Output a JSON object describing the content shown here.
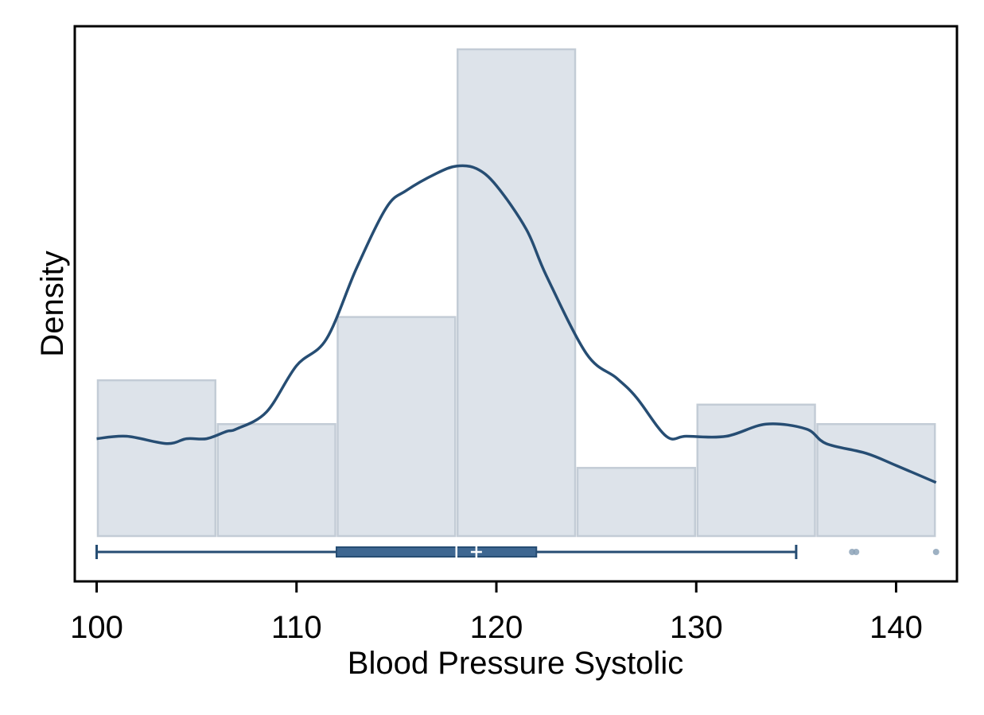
{
  "chart_data": {
    "type": "histogram",
    "title": "",
    "xlabel": "Blood Pressure Systolic",
    "ylabel": "Density",
    "xlim": [
      99,
      143
    ],
    "x_ticks": [
      "100",
      "110",
      "120",
      "130",
      "140"
    ],
    "y_ticks_shown": false,
    "grid": false,
    "histogram": {
      "bin_edges": [
        100,
        106,
        112,
        118,
        124,
        130,
        136,
        142
      ],
      "relative_heights": [
        0.32,
        0.23,
        0.45,
        1.0,
        0.14,
        0.27,
        0.23
      ]
    },
    "density_curve": {
      "x": [
        100,
        101.5,
        103.5,
        104.5,
        105.5,
        106.5,
        107,
        108.5,
        110,
        111.5,
        113,
        114.5,
        115.5,
        117,
        118,
        119,
        120,
        121.5,
        122.5,
        124.5,
        126,
        127,
        128.5,
        129.5,
        131.5,
        133.5,
        135.5,
        136.5,
        138.5,
        140,
        142
      ],
      "relative_heights": [
        0.2,
        0.205,
        0.19,
        0.2,
        0.2,
        0.215,
        0.22,
        0.255,
        0.35,
        0.405,
        0.55,
        0.675,
        0.71,
        0.745,
        0.76,
        0.755,
        0.72,
        0.63,
        0.535,
        0.375,
        0.325,
        0.285,
        0.205,
        0.205,
        0.205,
        0.23,
        0.22,
        0.19,
        0.17,
        0.145,
        0.11
      ]
    },
    "boxplot": {
      "whisker_low": 100,
      "q1": 112,
      "median": 118,
      "mean": 119,
      "q3": 122,
      "whisker_high": 135,
      "outliers": [
        137.8,
        138,
        142
      ]
    },
    "colors": {
      "bar_fill": "#dde3ea",
      "bar_stroke": "#c3ccd6",
      "curve": "#264d73",
      "box_fill": "#3e6791",
      "box_stroke": "#264d73",
      "outlier": "#8da3b9"
    }
  }
}
